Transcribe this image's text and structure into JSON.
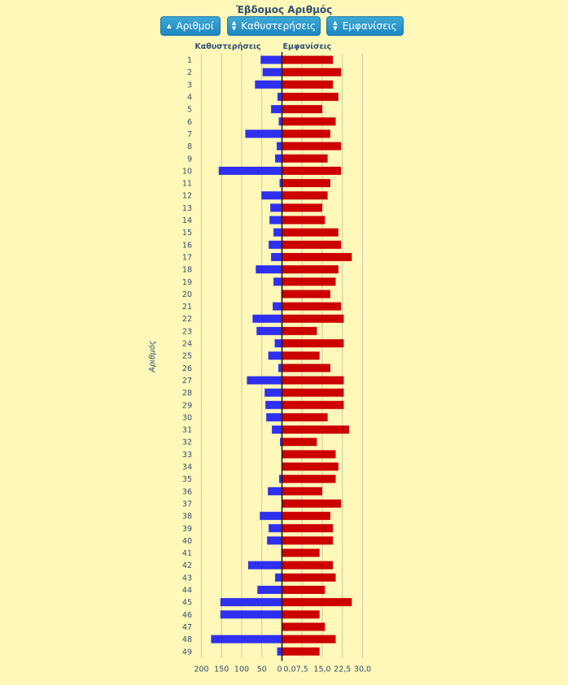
{
  "title": "Έβδομος Αριθμός",
  "buttons": [
    {
      "label": "Αριθμοί",
      "icon": "triangle-up-icon"
    },
    {
      "label": "Καθυστερήσεις",
      "icon": "sort-icon"
    },
    {
      "label": "Εμφανίσεις",
      "icon": "sort-icon"
    }
  ],
  "colors": {
    "delays": "#2f2ff0",
    "appearances": "#cc0000",
    "background": "#fff8b8"
  },
  "chart_data": {
    "type": "bar",
    "orientation": "horizontal",
    "ylabel": "Αριθμός",
    "categories": [
      "1",
      "2",
      "3",
      "4",
      "5",
      "6",
      "7",
      "8",
      "9",
      "10",
      "11",
      "12",
      "13",
      "14",
      "15",
      "16",
      "17",
      "18",
      "19",
      "20",
      "21",
      "22",
      "23",
      "24",
      "25",
      "26",
      "27",
      "28",
      "29",
      "30",
      "31",
      "32",
      "33",
      "34",
      "35",
      "36",
      "37",
      "38",
      "39",
      "40",
      "41",
      "42",
      "43",
      "44",
      "45",
      "46",
      "47",
      "48",
      "49"
    ],
    "series": [
      {
        "name": "Καθυστερήσεις",
        "side": "left",
        "xlim": [
          0,
          200
        ],
        "ticks": [
          "200",
          "150",
          "100",
          "50",
          "0"
        ],
        "values": [
          53,
          48,
          67,
          11,
          27,
          8,
          91,
          13,
          17,
          157,
          6,
          51,
          29,
          31,
          21,
          33,
          27,
          65,
          21,
          2,
          23,
          73,
          63,
          18,
          34,
          9,
          87,
          43,
          41,
          39,
          25,
          5,
          0,
          0,
          7,
          35,
          0,
          55,
          33,
          37,
          2,
          84,
          17,
          61,
          153,
          153,
          0,
          176,
          12
        ]
      },
      {
        "name": "Εμφανίσεις",
        "side": "right",
        "xlim": [
          0,
          30
        ],
        "ticks": [
          "0,0",
          "7,5",
          "15,0",
          "22,5",
          "30,0"
        ],
        "values": [
          19,
          22,
          19,
          21,
          15,
          20,
          18,
          22,
          17,
          22,
          18,
          17,
          15,
          16,
          21,
          22,
          26,
          21,
          20,
          18,
          22,
          23,
          13,
          23,
          14,
          18,
          23,
          23,
          23,
          17,
          25,
          13,
          20,
          21,
          20,
          15,
          22,
          18,
          19,
          19,
          14,
          19,
          20,
          16,
          26,
          14,
          16,
          20,
          14
        ]
      }
    ]
  }
}
